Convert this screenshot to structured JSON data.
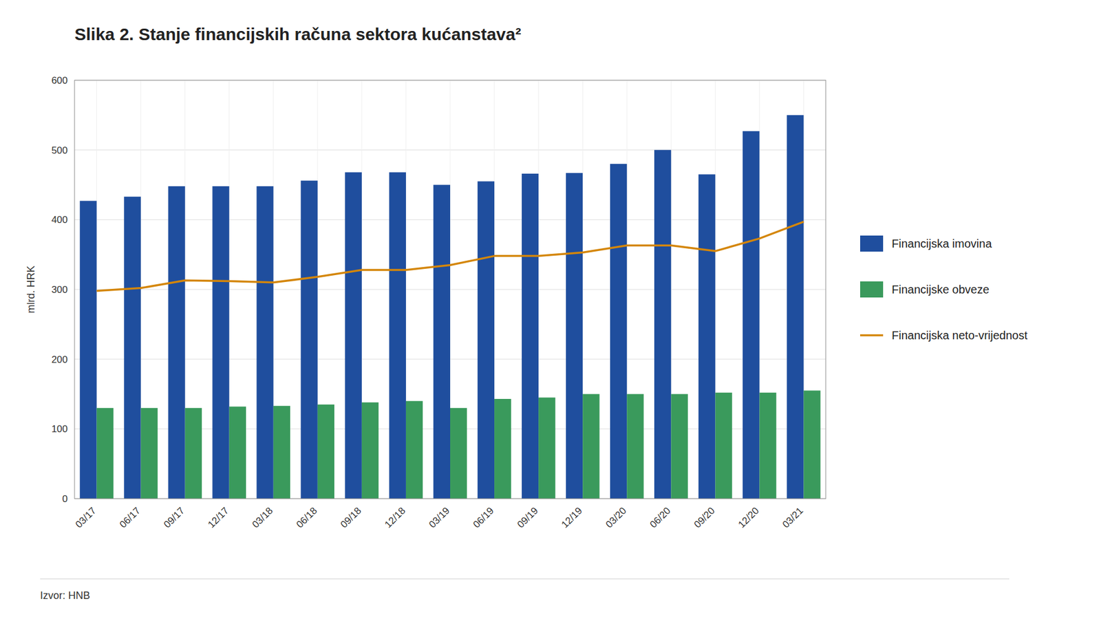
{
  "chart_data": {
    "type": "bar",
    "title": "Slika 2. Stanje financijskih računa sektora kućanstava²",
    "ylabel": "mlrd. HRK",
    "source": "Izvor: HNB",
    "categories": [
      "03/17",
      "06/17",
      "09/17",
      "12/17",
      "03/18",
      "06/18",
      "09/18",
      "12/18",
      "03/19",
      "06/19",
      "09/19",
      "12/19",
      "03/20",
      "06/20",
      "09/20",
      "12/20",
      "03/21"
    ],
    "series": [
      {
        "name": "Financijska imovina",
        "type": "bar",
        "color": "#1f4e9e",
        "values": [
          427,
          433,
          448,
          448,
          448,
          456,
          468,
          468,
          450,
          455,
          466,
          467,
          480,
          500,
          465,
          527,
          550
        ]
      },
      {
        "name": "Financijske obveze",
        "type": "bar",
        "color": "#3a9a5c",
        "values": [
          130,
          130,
          130,
          132,
          133,
          135,
          138,
          140,
          130,
          143,
          145,
          150,
          150,
          150,
          152,
          152,
          155
        ]
      },
      {
        "name": "Financijska neto-vrijednost",
        "type": "line",
        "color": "#d4860a",
        "values": [
          298,
          302,
          313,
          312,
          310,
          318,
          328,
          328,
          335,
          348,
          348,
          353,
          363,
          363,
          355,
          373,
          397
        ]
      }
    ],
    "ylim": [
      0,
      600
    ],
    "yticks": [
      0,
      100,
      200,
      300,
      400,
      500,
      600
    ],
    "grid": true,
    "legend": "right"
  }
}
